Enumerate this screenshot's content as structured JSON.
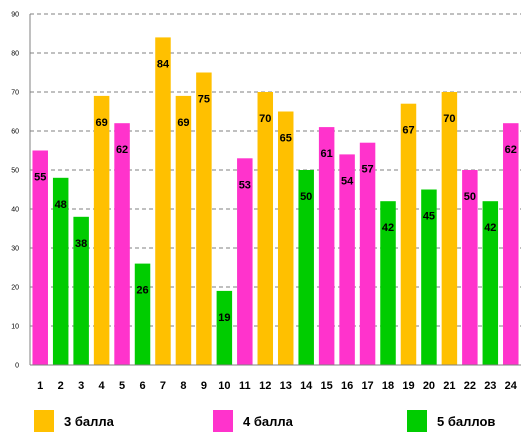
{
  "chart_data": {
    "type": "bar",
    "categories": [
      "1",
      "2",
      "3",
      "4",
      "5",
      "6",
      "7",
      "8",
      "9",
      "10",
      "11",
      "12",
      "13",
      "14",
      "15",
      "16",
      "17",
      "18",
      "19",
      "20",
      "21",
      "22",
      "23",
      "24"
    ],
    "values": [
      55,
      48,
      38,
      69,
      62,
      26,
      84,
      69,
      75,
      19,
      53,
      70,
      65,
      50,
      61,
      54,
      57,
      42,
      67,
      45,
      70,
      50,
      42,
      62
    ],
    "groups": [
      "4 балла",
      "5 баллов",
      "5 баллов",
      "3 балла",
      "4 балла",
      "5 баллов",
      "3 балла",
      "3 балла",
      "3 балла",
      "5 баллов",
      "4 балла",
      "3 балла",
      "3 балла",
      "5 баллов",
      "4 балла",
      "4 балла",
      "4 балла",
      "5 баллов",
      "3 балла",
      "5 баллов",
      "3 балла",
      "4 балла",
      "5 баллов",
      "4 балла"
    ],
    "ylim": [
      0,
      90
    ],
    "yticks": [
      0,
      10,
      20,
      30,
      40,
      50,
      60,
      70,
      80,
      90
    ],
    "grid": true,
    "legend_position": "bottom",
    "series": [
      {
        "name": "3 балла",
        "color": "#FFC000"
      },
      {
        "name": "4 балла",
        "color": "#FF33CC"
      },
      {
        "name": "5 баллов",
        "color": "#00CC00"
      }
    ]
  }
}
